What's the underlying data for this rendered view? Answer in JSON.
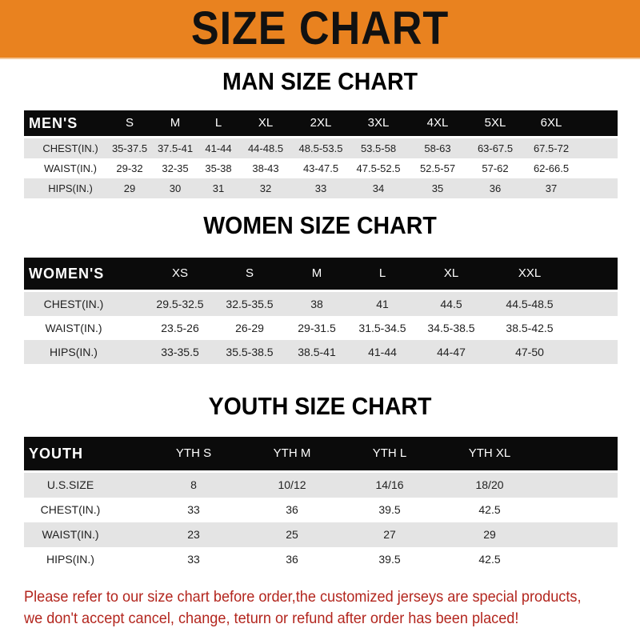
{
  "title": "SIZE CHART",
  "colors": {
    "banner": "#e9821f",
    "header_row": "#0b0b0b",
    "stripe": "#e4e4e4",
    "note": "#b3261e"
  },
  "tables": [
    {
      "title": "MAN SIZE CHART",
      "header": [
        "MEN'S",
        "S",
        "M",
        "L",
        "XL",
        "2XL",
        "3XL",
        "4XL",
        "5XL",
        "6XL"
      ],
      "rows": [
        [
          "CHEST(IN.)",
          "35-37.5",
          "37.5-41",
          "41-44",
          "44-48.5",
          "48.5-53.5",
          "53.5-58",
          "58-63",
          "63-67.5",
          "67.5-72"
        ],
        [
          "WAIST(IN.)",
          "29-32",
          "32-35",
          "35-38",
          "38-43",
          "43-47.5",
          "47.5-52.5",
          "52.5-57",
          "57-62",
          "62-66.5"
        ],
        [
          "HIPS(IN.)",
          "29",
          "30",
          "31",
          "32",
          "33",
          "34",
          "35",
          "36",
          "37"
        ]
      ]
    },
    {
      "title": "WOMEN SIZE CHART",
      "header": [
        "WOMEN'S",
        "XS",
        "S",
        "M",
        "L",
        "XL",
        "XXL"
      ],
      "rows": [
        [
          "CHEST(IN.)",
          "29.5-32.5",
          "32.5-35.5",
          "38",
          "41",
          "44.5",
          "44.5-48.5"
        ],
        [
          "WAIST(IN.)",
          "23.5-26",
          "26-29",
          "29-31.5",
          "31.5-34.5",
          "34.5-38.5",
          "38.5-42.5"
        ],
        [
          "HIPS(IN.)",
          "33-35.5",
          "35.5-38.5",
          "38.5-41",
          "41-44",
          "44-47",
          "47-50"
        ]
      ]
    },
    {
      "title": "YOUTH SIZE CHART",
      "header": [
        "YOUTH",
        "YTH S",
        "YTH M",
        "YTH L",
        "YTH XL"
      ],
      "rows": [
        [
          "U.S.SIZE",
          "8",
          "10/12",
          "14/16",
          "18/20"
        ],
        [
          "CHEST(IN.)",
          "33",
          "36",
          "39.5",
          "42.5"
        ],
        [
          "WAIST(IN.)",
          "23",
          "25",
          "27",
          "29"
        ],
        [
          "HIPS(IN.)",
          "33",
          "36",
          "39.5",
          "42.5"
        ]
      ]
    }
  ],
  "note": {
    "line1": "Please refer to our size chart before order,the customized jerseys are special products,",
    "line2": "we don't accept cancel, change, teturn or refund after order has been placed!"
  }
}
